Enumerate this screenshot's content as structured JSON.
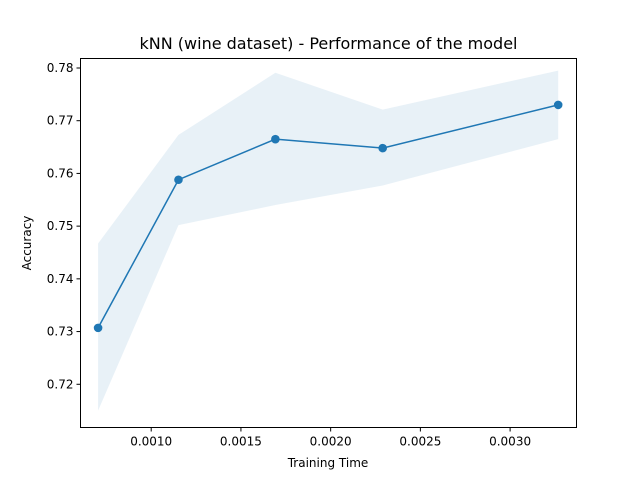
{
  "chart_data": {
    "type": "line",
    "title": "kNN (wine dataset) - Performance of the model",
    "xlabel": "Training Time",
    "ylabel": "Accuracy",
    "xlim": [
      0.000606,
      0.00337
    ],
    "ylim": [
      0.7118,
      0.7818
    ],
    "xticks": [
      0.001,
      0.0015,
      0.002,
      0.0025,
      0.003
    ],
    "xtick_labels": [
      "0.0010",
      "0.0015",
      "0.0020",
      "0.0025",
      "0.0030"
    ],
    "yticks": [
      0.72,
      0.73,
      0.74,
      0.75,
      0.76,
      0.77,
      0.78
    ],
    "ytick_labels": [
      "0.72",
      "0.73",
      "0.74",
      "0.75",
      "0.76",
      "0.77",
      "0.78"
    ],
    "grid": false,
    "series": [
      {
        "x": [
          0.000704,
          0.001152,
          0.001692,
          0.00229,
          0.003268
        ],
        "y": [
          0.7307,
          0.7588,
          0.7665,
          0.7648,
          0.773
        ],
        "lower": [
          0.715,
          0.7502,
          0.754,
          0.7577,
          0.7665
        ],
        "upper": [
          0.7467,
          0.7673,
          0.7791,
          0.7721,
          0.7795
        ],
        "color": "#1f77b4",
        "band_color": "#1f77b4"
      }
    ]
  }
}
